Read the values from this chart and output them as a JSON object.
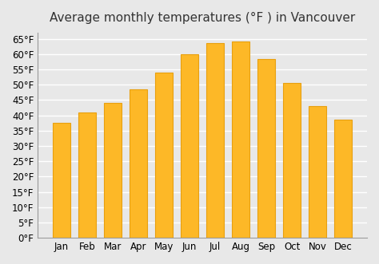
{
  "title": "Average monthly temperatures (°F ) in Vancouver",
  "months": [
    "Jan",
    "Feb",
    "Mar",
    "Apr",
    "May",
    "Jun",
    "Jul",
    "Aug",
    "Sep",
    "Oct",
    "Nov",
    "Dec"
  ],
  "values": [
    37.5,
    41,
    44,
    48.5,
    54,
    60,
    63.5,
    64,
    58.5,
    50.5,
    43,
    38.5
  ],
  "bar_color": "#FDB827",
  "bar_edge_color": "#E8A010",
  "background_color": "#E8E8E8",
  "grid_color": "#FFFFFF",
  "ylim": [
    0,
    67
  ],
  "yticks": [
    0,
    5,
    10,
    15,
    20,
    25,
    30,
    35,
    40,
    45,
    50,
    55,
    60,
    65
  ],
  "title_fontsize": 11,
  "tick_fontsize": 8.5
}
